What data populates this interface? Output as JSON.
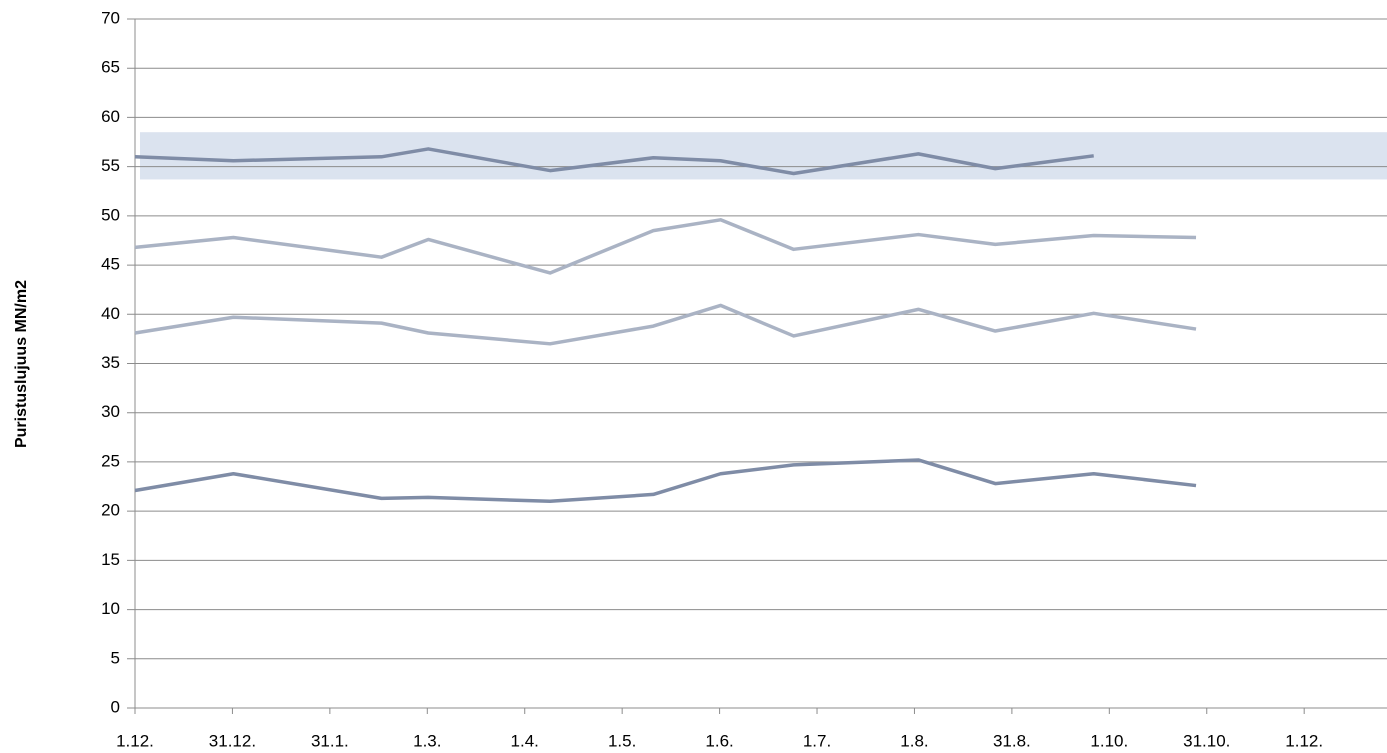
{
  "chart_data": {
    "type": "line",
    "y_label": "Puristuslujuus  MN/m2",
    "ylim": [
      0,
      70
    ],
    "yticks": [
      0,
      5,
      10,
      15,
      20,
      25,
      30,
      35,
      40,
      45,
      50,
      55,
      60,
      65,
      70
    ],
    "xlim": [
      0,
      12.85
    ],
    "xticks": [
      {
        "value": 0,
        "label": "1.12."
      },
      {
        "value": 1,
        "label": "31.12."
      },
      {
        "value": 2,
        "label": "31.1."
      },
      {
        "value": 3,
        "label": "1.3."
      },
      {
        "value": 4,
        "label": "1.4."
      },
      {
        "value": 5,
        "label": "1.5."
      },
      {
        "value": 6,
        "label": "1.6."
      },
      {
        "value": 7,
        "label": "1.7."
      },
      {
        "value": 8,
        "label": "1.8."
      },
      {
        "value": 9,
        "label": "31.8."
      },
      {
        "value": 10,
        "label": "1.10."
      },
      {
        "value": 11,
        "label": "31.10."
      },
      {
        "value": 12,
        "label": "1.12."
      }
    ],
    "grid": true,
    "band": {
      "ylim": [
        53.7,
        58.5
      ],
      "color": "#dbe3ef"
    },
    "series": [
      {
        "color": "#7f8ca6",
        "x": [
          0,
          1.01,
          2.53,
          3.01,
          4.26,
          5.32,
          6.01,
          6.76,
          8.04,
          8.83,
          9.84
        ],
        "values": [
          56,
          55.6,
          56,
          56.8,
          54.6,
          55.9,
          55.6,
          54.3,
          56.3,
          54.8,
          56.1
        ]
      },
      {
        "color": "#aab3c4",
        "x": [
          0,
          1.01,
          2.53,
          3.01,
          4.26,
          5.32,
          6.01,
          6.76,
          8.04,
          8.83,
          9.84,
          10.89
        ],
        "values": [
          46.8,
          47.8,
          45.8,
          47.6,
          44.2,
          48.5,
          49.6,
          46.6,
          48.1,
          47.1,
          48,
          47.8
        ]
      },
      {
        "color": "#aab3c4",
        "x": [
          0,
          1.01,
          2.53,
          3.01,
          4.26,
          5.32,
          6.01,
          6.76,
          8.04,
          8.83,
          9.84,
          10.89
        ],
        "values": [
          38.1,
          39.7,
          39.1,
          38.1,
          37,
          38.8,
          40.9,
          37.8,
          40.5,
          38.3,
          40.1,
          38.5
        ]
      },
      {
        "color": "#7f8ca6",
        "x": [
          0,
          1.01,
          2.53,
          3.01,
          4.26,
          5.32,
          6.01,
          6.76,
          8.04,
          8.83,
          9.84,
          10.89
        ],
        "values": [
          22.1,
          23.8,
          21.3,
          21.4,
          21,
          21.7,
          23.8,
          24.7,
          25.2,
          22.8,
          23.8,
          22.6
        ]
      }
    ]
  }
}
